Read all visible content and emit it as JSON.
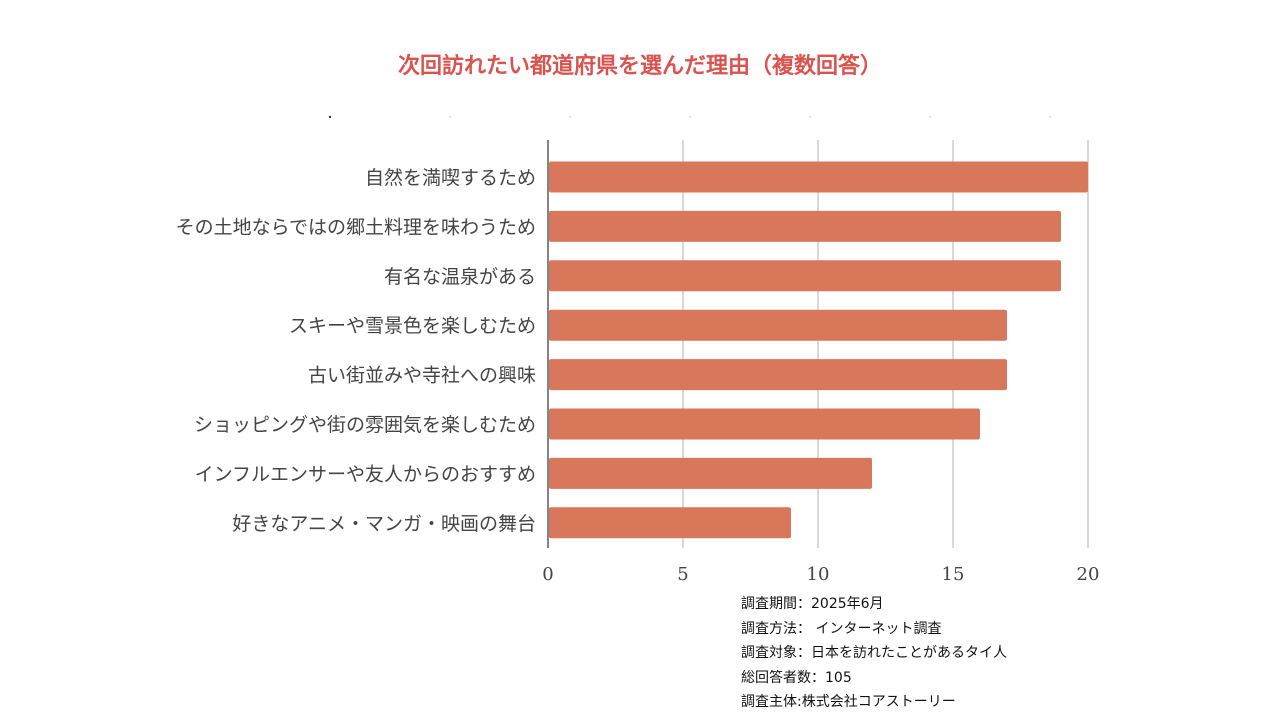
{
  "chart_data": {
    "type": "bar",
    "orientation": "horizontal",
    "title": "次回訪れたい都道府県を選んだ理由（複数回答）",
    "categories": [
      "自然を満喫するため",
      "その土地ならではの郷土料理を味わうため",
      "有名な温泉がある",
      "スキーや雪景色を楽しむため",
      "古い街並みや寺社への興味",
      "ショッピングや街の雰囲気を楽しむため",
      "インフルエンサーや友人からのおすすめ",
      "好きなアニメ・マンガ・映画の舞台"
    ],
    "values": [
      20,
      19,
      19,
      17,
      17,
      16,
      12,
      9
    ],
    "xlim": [
      0,
      20
    ],
    "xticks": [
      "0",
      "5",
      "10",
      "15",
      "20"
    ],
    "grid": true,
    "bar_color": "#d9775a",
    "title_color": "#d9534f"
  },
  "notes": [
    "調査期間：2025年6月",
    "調査方法： インターネット調査",
    "調査対象：日本を訪れたことがあるタイ人",
    "総回答者数：105",
    "調査主体:株式会社コアストーリー"
  ]
}
